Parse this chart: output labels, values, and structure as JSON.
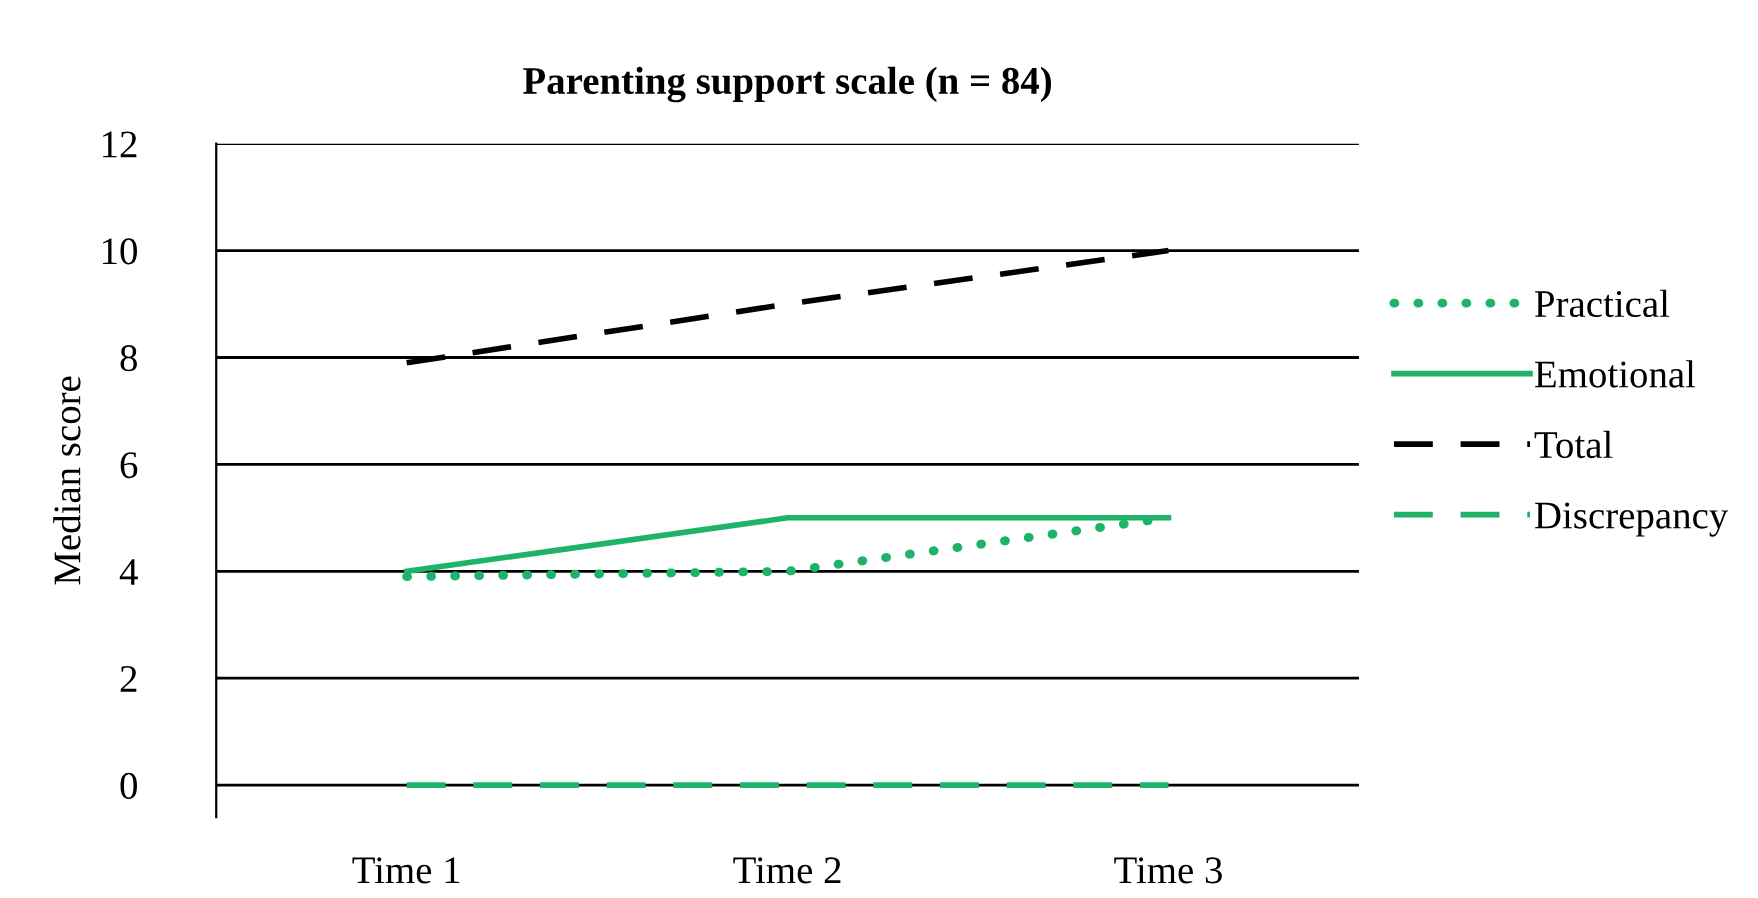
{
  "chart_data": {
    "type": "line",
    "title": "Parenting support scale (n = 84)",
    "ylabel": "Median score",
    "categories": [
      "Time 1",
      "Time 2",
      "Time 3"
    ],
    "series": [
      {
        "name": "Practical",
        "color": "#1db46a",
        "values": [
          3.9,
          4,
          5
        ],
        "line_style": "dotted"
      },
      {
        "name": "Emotional",
        "color": "#1db46a",
        "values": [
          4,
          5,
          5
        ],
        "line_style": "solid"
      },
      {
        "name": "Total",
        "color": "#000000",
        "values": [
          7.9,
          9,
          10
        ],
        "line_style": "dashed"
      },
      {
        "name": "Discrepancy",
        "color": "#1db46a",
        "values": [
          0,
          0,
          0
        ],
        "line_style": "dashed"
      }
    ],
    "ylim": [
      -0.6,
      12
    ],
    "yticks": [
      0,
      2,
      4,
      6,
      8,
      10,
      12
    ],
    "grid": "y",
    "legend": "right",
    "marker": "none"
  }
}
